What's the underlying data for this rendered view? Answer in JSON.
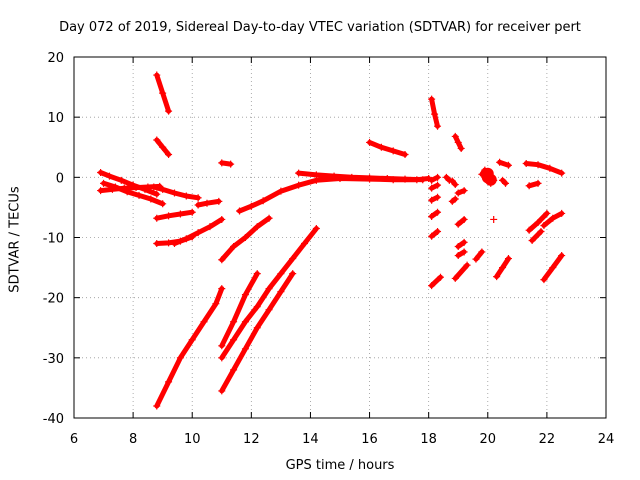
{
  "chart_data": {
    "type": "scatter",
    "title": "Day 072 of 2019, Sidereal Day-to-day VTEC variation (SDTVAR) for receiver pert",
    "xlabel": "GPS time / hours",
    "ylabel": "SDTVAR / TECUs",
    "xlim": [
      6,
      24
    ],
    "ylim": [
      -40,
      20
    ],
    "xticks": [
      6,
      8,
      10,
      12,
      14,
      16,
      18,
      20,
      22,
      24
    ],
    "yticks": [
      -40,
      -30,
      -20,
      -10,
      0,
      10,
      20
    ],
    "grid": true,
    "marker": "+",
    "color": "#ff0000",
    "segments": [
      {
        "x": [
          6.9,
          7.2,
          7.6,
          8.0,
          8.4,
          8.8
        ],
        "y": [
          0.8,
          0.2,
          -0.5,
          -1.3,
          -2.0,
          -2.8
        ]
      },
      {
        "x": [
          6.9,
          7.3,
          7.7,
          8.1,
          8.5,
          8.9
        ],
        "y": [
          -2.2,
          -2.0,
          -1.8,
          -1.7,
          -1.6,
          -1.5
        ]
      },
      {
        "x": [
          7.0,
          7.4,
          7.8,
          8.2,
          8.6,
          9.0
        ],
        "y": [
          -1.0,
          -1.6,
          -2.4,
          -3.0,
          -3.6,
          -4.4
        ]
      },
      {
        "x": [
          8.7,
          9.0,
          9.4,
          9.8,
          10.2
        ],
        "y": [
          -1.6,
          -2.0,
          -2.6,
          -3.1,
          -3.4
        ]
      },
      {
        "x": [
          10.2,
          10.5,
          10.9
        ],
        "y": [
          -4.6,
          -4.3,
          -4.0
        ]
      },
      {
        "x": [
          8.8,
          9.2,
          9.6,
          10.0
        ],
        "y": [
          -6.8,
          -6.4,
          -6.1,
          -5.8
        ]
      },
      {
        "x": [
          8.8,
          9.2,
          9.6,
          10.0
        ],
        "y": [
          -11.0,
          -10.9,
          -10.6,
          -9.9
        ]
      },
      {
        "x": [
          9.4,
          9.8,
          10.2,
          10.6,
          11.0
        ],
        "y": [
          -11.0,
          -10.2,
          -9.2,
          -8.2,
          -7.0
        ]
      },
      {
        "x": [
          8.8,
          9.0,
          9.2
        ],
        "y": [
          17.0,
          14.0,
          11.0
        ]
      },
      {
        "x": [
          8.8,
          9.0,
          9.2
        ],
        "y": [
          6.2,
          5.0,
          3.8
        ]
      },
      {
        "x": [
          11.0,
          11.3
        ],
        "y": [
          2.4,
          2.2
        ]
      },
      {
        "x": [
          11.6,
          12.0,
          12.4,
          13.0,
          13.6,
          14.2,
          15.0,
          16.0,
          16.8,
          17.6,
          18.0
        ],
        "y": [
          -5.6,
          -4.8,
          -3.9,
          -2.3,
          -1.3,
          -0.5,
          -0.2,
          -0.3,
          -0.4,
          -0.4,
          -0.2
        ]
      },
      {
        "x": [
          13.6,
          14.2,
          14.8,
          15.4,
          16.0,
          16.6,
          17.2,
          17.8
        ],
        "y": [
          0.7,
          0.4,
          0.2,
          0.0,
          -0.1,
          -0.2,
          -0.3,
          -0.4
        ]
      },
      {
        "x": [
          16.0,
          16.4,
          16.8,
          17.2
        ],
        "y": [
          5.8,
          5.0,
          4.4,
          3.8
        ]
      },
      {
        "x": [
          11.0,
          11.4,
          11.8,
          12.2,
          12.6
        ],
        "y": [
          -13.7,
          -11.5,
          -10.0,
          -8.2,
          -6.8
        ]
      },
      {
        "x": [
          8.8,
          9.2,
          9.6,
          10.0,
          10.4,
          10.8,
          11.0
        ],
        "y": [
          -38.0,
          -34.0,
          -30.0,
          -27.0,
          -24.0,
          -21.0,
          -18.5
        ]
      },
      {
        "x": [
          11.0,
          11.4,
          11.8,
          12.2
        ],
        "y": [
          -28.0,
          -24.0,
          -19.5,
          -16.0
        ]
      },
      {
        "x": [
          11.0,
          11.4,
          11.8,
          12.2,
          12.6,
          13.0,
          13.4,
          13.8,
          14.2
        ],
        "y": [
          -30.0,
          -27.0,
          -24.0,
          -21.5,
          -18.5,
          -16.0,
          -13.5,
          -11.0,
          -8.5
        ]
      },
      {
        "x": [
          11.0,
          11.4,
          11.8,
          12.2,
          12.6,
          13.0,
          13.4
        ],
        "y": [
          -35.5,
          -32.0,
          -28.5,
          -25.0,
          -22.0,
          -19.0,
          -16.0
        ]
      },
      {
        "x": [
          18.1,
          18.2,
          18.3
        ],
        "y": [
          13.0,
          10.5,
          8.5
        ]
      },
      {
        "x": [
          18.9,
          19.0,
          19.1
        ],
        "y": [
          6.8,
          5.8,
          4.8
        ]
      },
      {
        "x": [
          18.1,
          18.3
        ],
        "y": [
          -0.5,
          0.0
        ]
      },
      {
        "x": [
          18.1,
          18.3
        ],
        "y": [
          -1.8,
          -1.3
        ]
      },
      {
        "x": [
          18.1,
          18.3
        ],
        "y": [
          -3.8,
          -3.3
        ]
      },
      {
        "x": [
          18.1,
          18.3
        ],
        "y": [
          -6.5,
          -5.8
        ]
      },
      {
        "x": [
          18.1,
          18.3
        ],
        "y": [
          -9.8,
          -9.0
        ]
      },
      {
        "x": [
          18.1,
          18.4
        ],
        "y": [
          -18.0,
          -16.6
        ]
      },
      {
        "x": [
          18.6,
          18.7
        ],
        "y": [
          0.0,
          -0.5
        ]
      },
      {
        "x": [
          18.8,
          18.9
        ],
        "y": [
          -0.6,
          -1.2
        ]
      },
      {
        "x": [
          18.8,
          18.9
        ],
        "y": [
          -4.0,
          -3.6
        ]
      },
      {
        "x": [
          19.0,
          19.2
        ],
        "y": [
          -2.6,
          -2.2
        ]
      },
      {
        "x": [
          19.0,
          19.2
        ],
        "y": [
          -7.8,
          -7.0
        ]
      },
      {
        "x": [
          19.0,
          19.2
        ],
        "y": [
          -11.5,
          -10.8
        ]
      },
      {
        "x": [
          19.0,
          19.2
        ],
        "y": [
          -13.0,
          -12.4
        ]
      },
      {
        "x": [
          18.9,
          19.3
        ],
        "y": [
          -16.8,
          -14.6
        ]
      },
      {
        "x": [
          19.6,
          19.8
        ],
        "y": [
          -13.6,
          -12.4
        ]
      },
      {
        "x": [
          19.8,
          19.9
        ],
        "y": [
          0.5,
          1.2
        ]
      },
      {
        "x": [
          20.2
        ],
        "y": [
          -7.0
        ]
      },
      {
        "x": [
          20.1,
          20.2
        ],
        "y": [
          -1.0,
          -0.5
        ]
      },
      {
        "x": [
          20.4,
          20.7
        ],
        "y": [
          2.5,
          2.0
        ]
      },
      {
        "x": [
          20.5,
          20.6
        ],
        "y": [
          -0.5,
          -1.0
        ]
      },
      {
        "x": [
          20.3,
          20.5,
          20.7
        ],
        "y": [
          -16.5,
          -15.0,
          -13.5
        ]
      },
      {
        "x": [
          21.3,
          21.7,
          22.1,
          22.5
        ],
        "y": [
          2.3,
          2.1,
          1.5,
          0.7
        ]
      },
      {
        "x": [
          21.4,
          21.7
        ],
        "y": [
          -1.4,
          -1.0
        ]
      },
      {
        "x": [
          21.4,
          21.7,
          22.0
        ],
        "y": [
          -8.8,
          -7.5,
          -6.0
        ]
      },
      {
        "x": [
          21.5,
          21.8
        ],
        "y": [
          -10.5,
          -9.0
        ]
      },
      {
        "x": [
          21.9,
          22.2,
          22.5
        ],
        "y": [
          -8.0,
          -6.8,
          -6.0
        ]
      },
      {
        "x": [
          21.9,
          22.2,
          22.5
        ],
        "y": [
          -17.0,
          -15.0,
          -13.0
        ]
      }
    ],
    "clusters": [
      {
        "x": 20.0,
        "y": 0.0
      },
      {
        "x": 20.0,
        "y": 0.6
      },
      {
        "x": 20.1,
        "y": -0.4
      }
    ]
  }
}
